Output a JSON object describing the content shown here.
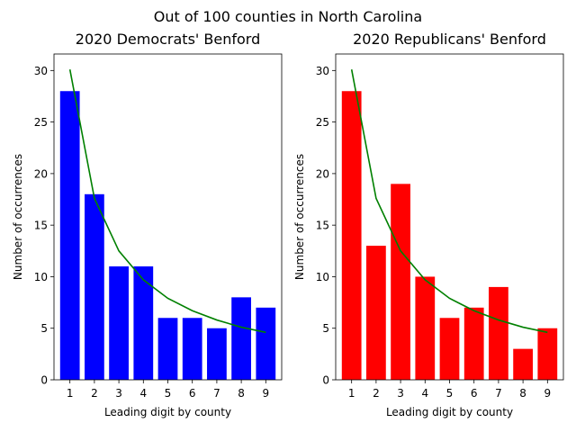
{
  "suptitle": "Out of 100 counties in North Carolina",
  "chart_data": [
    {
      "type": "bar",
      "title": "2020 Democrats' Benford",
      "xlabel": "Leading digit by county",
      "ylabel": "Number of occurrences",
      "categories": [
        "1",
        "2",
        "3",
        "4",
        "5",
        "6",
        "7",
        "8",
        "9"
      ],
      "values": [
        28,
        18,
        11,
        11,
        6,
        6,
        5,
        8,
        7
      ],
      "bar_color": "#0000ff",
      "line_values": [
        30.1,
        17.6,
        12.5,
        9.7,
        7.9,
        6.7,
        5.8,
        5.1,
        4.6
      ],
      "line_color": "#008000",
      "xlim": [
        0.35,
        9.65
      ],
      "ylim": [
        0,
        31.6
      ],
      "yticks": [
        0,
        5,
        10,
        15,
        20,
        25,
        30
      ],
      "grid": false,
      "legend": "none"
    },
    {
      "type": "bar",
      "title": "2020 Republicans' Benford",
      "xlabel": "Leading digit by county",
      "ylabel": "Number of occurrences",
      "categories": [
        "1",
        "2",
        "3",
        "4",
        "5",
        "6",
        "7",
        "8",
        "9"
      ],
      "values": [
        28,
        13,
        19,
        10,
        6,
        7,
        9,
        3,
        5
      ],
      "bar_color": "#ff0000",
      "line_values": [
        30.1,
        17.6,
        12.5,
        9.7,
        7.9,
        6.7,
        5.8,
        5.1,
        4.6
      ],
      "line_color": "#008000",
      "xlim": [
        0.35,
        9.65
      ],
      "ylim": [
        0,
        31.6
      ],
      "yticks": [
        0,
        5,
        10,
        15,
        20,
        25,
        30
      ],
      "grid": false,
      "legend": "none"
    }
  ]
}
